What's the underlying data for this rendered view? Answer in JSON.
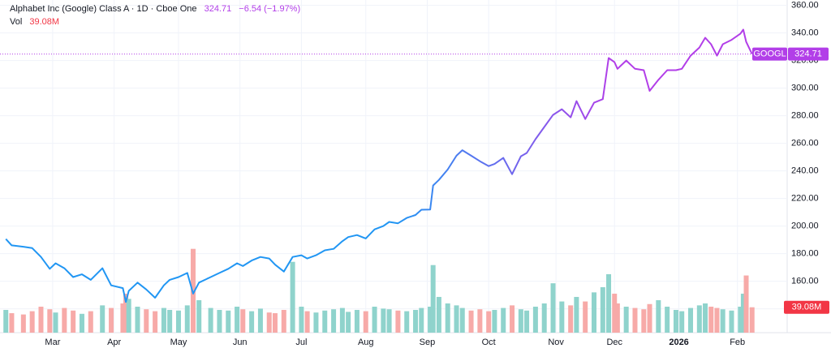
{
  "chart_data": {
    "type": "line",
    "title": "Alphabet Inc (Google) Class A · 1D · Cboe One",
    "last": 324.71,
    "change_label": "−6.54 (−1.97%)",
    "last_volume": {
      "value": 39.08,
      "label": "39.08M"
    },
    "accent_color": "#b23ee8",
    "volume_tag_color": "#f23645",
    "grid": true,
    "x": [
      0,
      2,
      6,
      9,
      12,
      15,
      17,
      20,
      23,
      26,
      29,
      33,
      36,
      40,
      41,
      42,
      45,
      48,
      51,
      54,
      56,
      59,
      62,
      64,
      66,
      70,
      73,
      76,
      79,
      81,
      84,
      87,
      90,
      92,
      95,
      98,
      101,
      103,
      106,
      109,
      112,
      115,
      117,
      120,
      123,
      126,
      129,
      131,
      134,
      137,
      140,
      142,
      145,
      146,
      148,
      151,
      154,
      156,
      159,
      162,
      165,
      167,
      170,
      173,
      176,
      178,
      181,
      184,
      187,
      190,
      193,
      195,
      198,
      201,
      204,
      206,
      208,
      209,
      212,
      215,
      218,
      220,
      223,
      226,
      229,
      231,
      234,
      237,
      239,
      241,
      243,
      245,
      248,
      251,
      252,
      253,
      255
    ],
    "xlim": [
      -2,
      267
    ],
    "xticks": [
      {
        "value": 16,
        "label": "Mar"
      },
      {
        "value": 37,
        "label": "Apr"
      },
      {
        "value": 59,
        "label": "May"
      },
      {
        "value": 80,
        "label": "Jun"
      },
      {
        "value": 101,
        "label": "Jul"
      },
      {
        "value": 123,
        "label": "Aug"
      },
      {
        "value": 144,
        "label": "Sep"
      },
      {
        "value": 165,
        "label": "Oct"
      },
      {
        "value": 188,
        "label": "Nov"
      },
      {
        "value": 208,
        "label": "Dec"
      },
      {
        "value": 230,
        "label": "2026"
      },
      {
        "value": 250,
        "label": "Feb"
      }
    ],
    "ylim": [
      138.24,
      361.76
    ],
    "yticks": [
      {
        "value": 140,
        "label": "140.00"
      },
      {
        "value": 160,
        "label": "160.00"
      },
      {
        "value": 180,
        "label": "180.00"
      },
      {
        "value": 200,
        "label": "200.00"
      },
      {
        "value": 220,
        "label": "220.00"
      },
      {
        "value": 240,
        "label": "240.00"
      },
      {
        "value": 260,
        "label": "260.00"
      },
      {
        "value": 280,
        "label": "280.00"
      },
      {
        "value": 300,
        "label": "300.00"
      },
      {
        "value": 320,
        "label": "320.00"
      },
      {
        "value": 340,
        "label": "340.00"
      },
      {
        "value": 360,
        "label": "360.00"
      }
    ],
    "y2lim": [
      0,
      512
    ],
    "series": [
      {
        "name": "GOOGL",
        "color": "#2196f3",
        "color_end": "#b23ee8",
        "values": [
          190.6,
          186,
          185,
          184,
          177.6,
          169,
          173,
          169.4,
          163,
          165,
          161,
          169.4,
          157,
          155,
          145,
          153,
          159,
          154,
          148,
          157,
          161,
          163,
          166,
          151,
          159,
          163,
          166,
          169,
          173,
          171,
          175,
          177.6,
          176.5,
          172,
          167,
          177.6,
          178.8,
          176.5,
          178.8,
          182.4,
          183.5,
          189,
          192,
          193.5,
          191,
          197.6,
          200,
          203,
          202,
          205.9,
          208,
          211.8,
          212,
          229.4,
          233.5,
          241,
          251,
          255,
          251,
          247,
          243.5,
          245,
          249.4,
          237.6,
          250.6,
          253,
          263,
          271.8,
          280.6,
          284.7,
          278.8,
          290.6,
          277.6,
          289.4,
          292,
          321.8,
          318.8,
          314,
          320,
          314,
          313,
          298,
          306,
          313,
          313,
          314,
          323.5,
          329.4,
          336.5,
          331.8,
          323.5,
          331.8,
          335,
          339.4,
          342.4,
          333.5,
          324.71
        ]
      },
      {
        "name": "Vol",
        "axis": "y2",
        "up_color": "#8fd3cc",
        "down_color": "#f7aaa8",
        "values": [
          35,
          30,
          28,
          33,
          40,
          36,
          31,
          38,
          34,
          29,
          33,
          42,
          38,
          45,
          60,
          52,
          40,
          36,
          33,
          38,
          35,
          34,
          42,
          129,
          50,
          38,
          35,
          34,
          40,
          36,
          33,
          37,
          31,
          30,
          35,
          109,
          40,
          33,
          31,
          34,
          36,
          38,
          32,
          35,
          33,
          40,
          37,
          36,
          34,
          33,
          35,
          38,
          40,
          104,
          55,
          45,
          42,
          38,
          34,
          36,
          33,
          35,
          38,
          42,
          36,
          34,
          40,
          45,
          76,
          48,
          42,
          55,
          48,
          62,
          70,
          90,
          60,
          45,
          40,
          38,
          36,
          44,
          50,
          40,
          35,
          33,
          38,
          42,
          45,
          40,
          38,
          36,
          34,
          40,
          60,
          88,
          39.08
        ]
      }
    ]
  }
}
